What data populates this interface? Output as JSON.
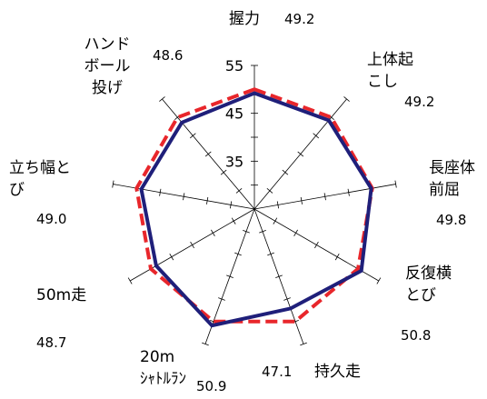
{
  "chart_data": {
    "type": "radar",
    "r_ticks": [
      35,
      45,
      55
    ],
    "rlim": [
      25,
      55
    ],
    "axes": [
      {
        "label_lines": [
          "握力"
        ],
        "value_label": "49.2"
      },
      {
        "label_lines": [
          "上体起",
          "こし"
        ],
        "value_label": "49.2"
      },
      {
        "label_lines": [
          "長座体",
          "前屈"
        ],
        "value_label": "49.8"
      },
      {
        "label_lines": [
          "反復横",
          "とび"
        ],
        "value_label": "50.8"
      },
      {
        "label_lines": [
          "持久走"
        ],
        "value_label": "47.1"
      },
      {
        "label_lines": [
          "20m",
          "ｼｬﾄﾙﾗﾝ"
        ],
        "value_label": "50.9"
      },
      {
        "label_lines": [
          "50m走"
        ],
        "value_label": "48.7"
      },
      {
        "label_lines": [
          "立ち幅と",
          "び"
        ],
        "value_label": "49.0"
      },
      {
        "label_lines": [
          "ハンド",
          "ボール",
          "投げ"
        ],
        "value_label": "48.6"
      }
    ],
    "series": [
      {
        "color": "#1f1f7a",
        "dash": false,
        "values": [
          49.2,
          49.2,
          49.8,
          50.8,
          47.1,
          50.9,
          48.7,
          49.0,
          48.6
        ]
      },
      {
        "color": "#e8262b",
        "dash": true,
        "values": [
          50.0,
          50.0,
          50.0,
          50.0,
          50.0,
          50.0,
          50.0,
          50.0,
          50.0
        ]
      }
    ],
    "grid": false
  }
}
